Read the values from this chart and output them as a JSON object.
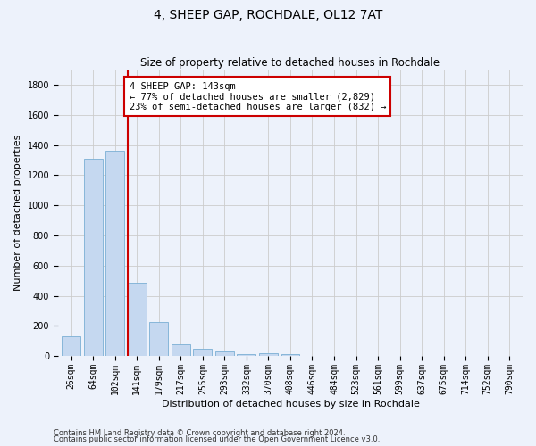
{
  "title": "4, SHEEP GAP, ROCHDALE, OL12 7AT",
  "subtitle": "Size of property relative to detached houses in Rochdale",
  "xlabel": "Distribution of detached houses by size in Rochdale",
  "ylabel": "Number of detached properties",
  "footnote1": "Contains HM Land Registry data © Crown copyright and database right 2024.",
  "footnote2": "Contains public sector information licensed under the Open Government Licence v3.0.",
  "categories": [
    "26sqm",
    "64sqm",
    "102sqm",
    "141sqm",
    "179sqm",
    "217sqm",
    "255sqm",
    "293sqm",
    "332sqm",
    "370sqm",
    "408sqm",
    "446sqm",
    "484sqm",
    "523sqm",
    "561sqm",
    "599sqm",
    "637sqm",
    "675sqm",
    "714sqm",
    "752sqm",
    "790sqm"
  ],
  "values": [
    130,
    1310,
    1360,
    485,
    225,
    75,
    45,
    28,
    15,
    20,
    15,
    3,
    2,
    1,
    1,
    0,
    0,
    0,
    0,
    0,
    0
  ],
  "bar_color": "#c5d8f0",
  "bar_edge_color": "#7aafd4",
  "bar_linewidth": 0.6,
  "red_line_index": 3,
  "red_line_color": "#cc0000",
  "annotation_line1": "4 SHEEP GAP: 143sqm",
  "annotation_line2": "← 77% of detached houses are smaller (2,829)",
  "annotation_line3": "23% of semi-detached houses are larger (832) →",
  "annotation_box_edge_color": "#cc0000",
  "annotation_box_face_color": "#ffffff",
  "ylim": [
    0,
    1900
  ],
  "yticks": [
    0,
    200,
    400,
    600,
    800,
    1000,
    1200,
    1400,
    1600,
    1800
  ],
  "grid_color": "#cccccc",
  "background_color": "#edf2fb",
  "title_fontsize": 10,
  "axis_label_fontsize": 8,
  "tick_fontsize": 7,
  "annotation_fontsize": 7.5,
  "footnote_fontsize": 6
}
